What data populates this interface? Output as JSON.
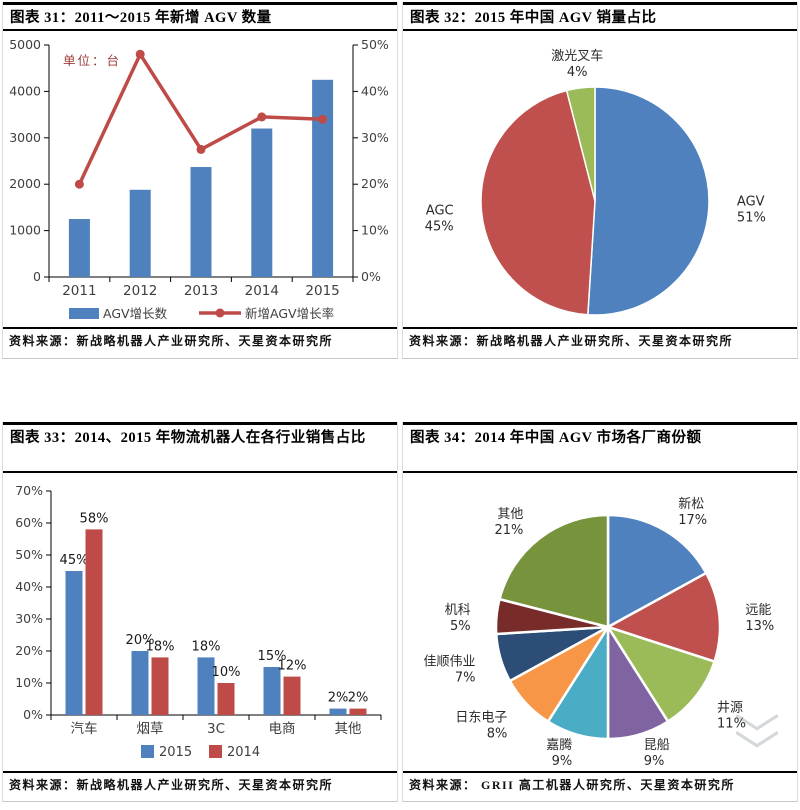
{
  "panels": [
    {
      "title": "图表 31：2011～2015 年新增 AGV 数量",
      "source": "资料来源：新战略机器人产业研究所、天星资本研究所"
    },
    {
      "title": "图表 32：2015 年中国 AGV 销量占比",
      "source": "资料来源：新战略机器人产业研究所、天星资本研究所"
    },
    {
      "title": "图表 33：2014、2015 年物流机器人在各行业销售占比",
      "source": "资料来源：新战略机器人产业研究所、天星资本研究所"
    },
    {
      "title": "图表 34：2014 年中国 AGV 市场各厂商份额",
      "source": "资料来源： GRII 高工机器人研究所、天星资本研究所"
    }
  ],
  "colors": {
    "bar_blue": "#4e81bd",
    "line_red": "#be4b48",
    "axis_text": "#3f3f3f",
    "unit_note_red": "#9e3a38"
  },
  "watermark": {
    "line1": "﹀",
    "line2": "﹀"
  },
  "chart_data": [
    {
      "type": "bar",
      "subtype": "bar-line-combo",
      "title": "图表 31：2011～2015 年新增 AGV 数量",
      "unit_note": "单位：台",
      "categories": [
        "2011",
        "2012",
        "2013",
        "2014",
        "2015"
      ],
      "series": [
        {
          "name": "AGV增长数",
          "kind": "bar",
          "axis": "left",
          "color": "#4e81bd",
          "values": [
            1250,
            1880,
            2370,
            3200,
            4250
          ]
        },
        {
          "name": "新增AGV增长率",
          "kind": "line",
          "axis": "right",
          "color": "#be4b48",
          "values": [
            20,
            48,
            27.5,
            34.5,
            34
          ]
        }
      ],
      "left_axis": {
        "min": 0,
        "max": 5000,
        "step": 1000,
        "suffix": ""
      },
      "right_axis": {
        "min": 0,
        "max": 50,
        "step": 10,
        "suffix": "%"
      },
      "legend_position": "bottom",
      "grid": false
    },
    {
      "type": "pie",
      "title": "图表 32：2015 年中国 AGV 销量占比",
      "start_angle_deg_from_top": 0,
      "direction": "clockwise",
      "slices": [
        {
          "label": "AGV",
          "value": 51,
          "color": "#4e81bd"
        },
        {
          "label": "AGC",
          "value": 45,
          "color": "#c0504d"
        },
        {
          "label": "激光叉车",
          "value": 4,
          "color": "#9bbb59"
        }
      ],
      "legend_position": "none"
    },
    {
      "type": "bar",
      "subtype": "grouped-bar",
      "title": "图表 33：2014、2015 年物流机器人在各行业销售占比",
      "categories": [
        "汽车",
        "烟草",
        "3C",
        "电商",
        "其他"
      ],
      "series": [
        {
          "name": "2015",
          "color": "#4e81bd",
          "values": [
            45,
            20,
            18,
            15,
            2
          ]
        },
        {
          "name": "2014",
          "color": "#be4b48",
          "values": [
            58,
            18,
            10,
            12,
            2
          ]
        }
      ],
      "y_axis": {
        "min": 0,
        "max": 70,
        "step": 10,
        "suffix": "%"
      },
      "data_labels": true,
      "legend_position": "bottom",
      "grid": false
    },
    {
      "type": "pie",
      "title": "图表 34：2014 年中国 AGV 市场各厂商份额",
      "start_angle_deg_from_top": 0,
      "direction": "clockwise",
      "slices": [
        {
          "label": "新松",
          "value": 17,
          "color": "#4e81bd"
        },
        {
          "label": "远能",
          "value": 13,
          "color": "#c0504d"
        },
        {
          "label": "井源",
          "value": 11,
          "color": "#9bbb59"
        },
        {
          "label": "昆船",
          "value": 9,
          "color": "#8064a2"
        },
        {
          "label": "嘉腾",
          "value": 9,
          "color": "#4bacc6"
        },
        {
          "label": "日东电子",
          "value": 8,
          "color": "#f79646"
        },
        {
          "label": "佳顺伟业",
          "value": 7,
          "color": "#2c4d75"
        },
        {
          "label": "机科",
          "value": 5,
          "color": "#772c2a"
        },
        {
          "label": "其他",
          "value": 21,
          "color": "#77933c"
        }
      ],
      "legend_position": "none"
    }
  ]
}
